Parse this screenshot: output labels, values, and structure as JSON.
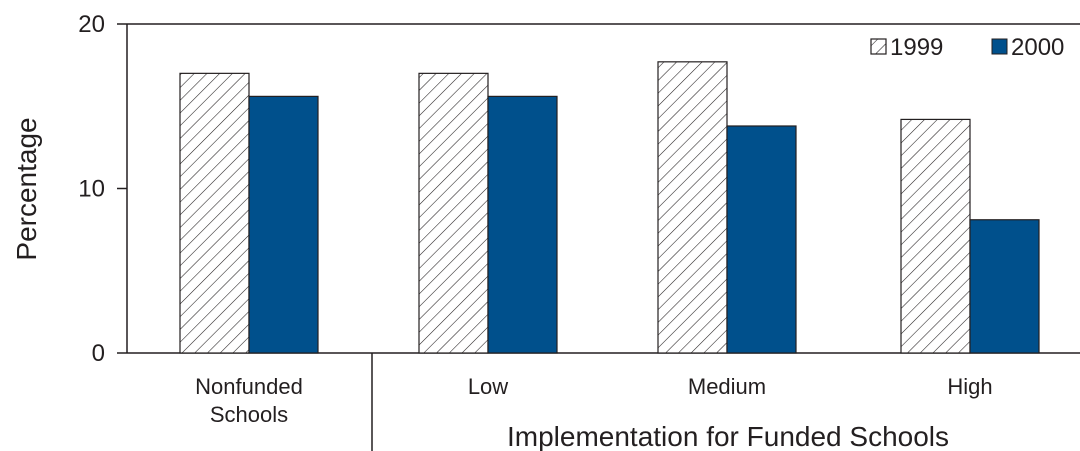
{
  "chart_data": {
    "type": "bar",
    "categories": [
      "Nonfunded Schools",
      "Low",
      "Medium",
      "High"
    ],
    "category_lines": [
      [
        "Nonfunded",
        "Schools"
      ],
      [
        "Low"
      ],
      [
        "Medium"
      ],
      [
        "High"
      ]
    ],
    "series": [
      {
        "name": "1999",
        "values": [
          17.0,
          17.0,
          17.7,
          14.2
        ],
        "color": "#ffffff",
        "pattern": "diagonal-hatch"
      },
      {
        "name": "2000",
        "values": [
          15.6,
          15.6,
          13.8,
          8.1
        ],
        "color": "#00508c"
      }
    ],
    "ylabel": "Percentage",
    "xlabel": "Implementation for Funded Schools",
    "ylim": [
      0,
      20
    ],
    "yticks": [
      "0",
      "10",
      "20"
    ],
    "grid": false,
    "legend_position": "top-right"
  }
}
